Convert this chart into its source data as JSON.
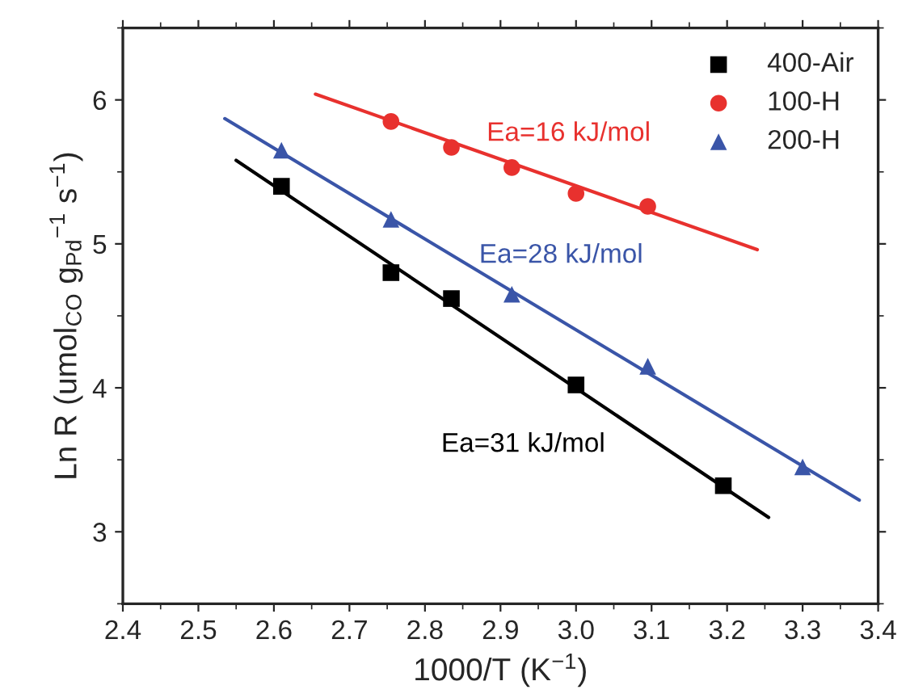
{
  "chart_data": {
    "type": "scatter",
    "xlabel": "1000/T (K$^{−1}$)",
    "ylabel": "Ln R (umol$_{CO}$ g$_{Pd}$$^{−1}$ s$^{−1}$)",
    "series": [
      {
        "name": "400-Air",
        "marker": "square",
        "color": "#000000",
        "x": [
          2.61,
          2.755,
          2.835,
          3.0,
          3.195
        ],
        "values": [
          5.4,
          4.8,
          4.62,
          4.02,
          3.32
        ]
      },
      {
        "name": "100-H",
        "marker": "circle",
        "color": "#e8312e",
        "x": [
          2.755,
          2.835,
          2.915,
          3.0,
          3.095
        ],
        "values": [
          5.85,
          5.67,
          5.53,
          5.35,
          5.26
        ]
      },
      {
        "name": "200-H",
        "marker": "triangle",
        "color": "#3a55a8",
        "x": [
          2.61,
          2.755,
          2.915,
          3.095,
          3.3
        ],
        "values": [
          5.65,
          5.17,
          4.65,
          4.15,
          3.45
        ]
      },
      {
        "type": "line",
        "color": "#000000",
        "x": [
          2.55,
          3.255
        ],
        "values": [
          5.58,
          3.1
        ]
      },
      {
        "type": "line",
        "color": "#e8312e",
        "x": [
          2.655,
          3.24
        ],
        "values": [
          6.04,
          4.96
        ]
      },
      {
        "type": "line",
        "color": "#3a55a8",
        "x": [
          2.535,
          3.375
        ],
        "values": [
          5.87,
          3.22
        ]
      }
    ],
    "annotations": [
      "Ea=31 kJ/mol",
      "Ea=16 kJ/mol",
      "Ea=28 kJ/mol"
    ],
    "xlim": [
      2.4,
      3.4
    ],
    "xticks": [
      2.4,
      2.5,
      2.6,
      2.7,
      2.8,
      2.9,
      {
        "value": 3.0,
        "label": "3.0"
      },
      3.1,
      3.2,
      3.3,
      3.4
    ],
    "ylim": [
      2.5,
      6.5
    ],
    "yticks": [
      3,
      4,
      5,
      6
    ],
    "grid": false,
    "legend": "top right"
  }
}
